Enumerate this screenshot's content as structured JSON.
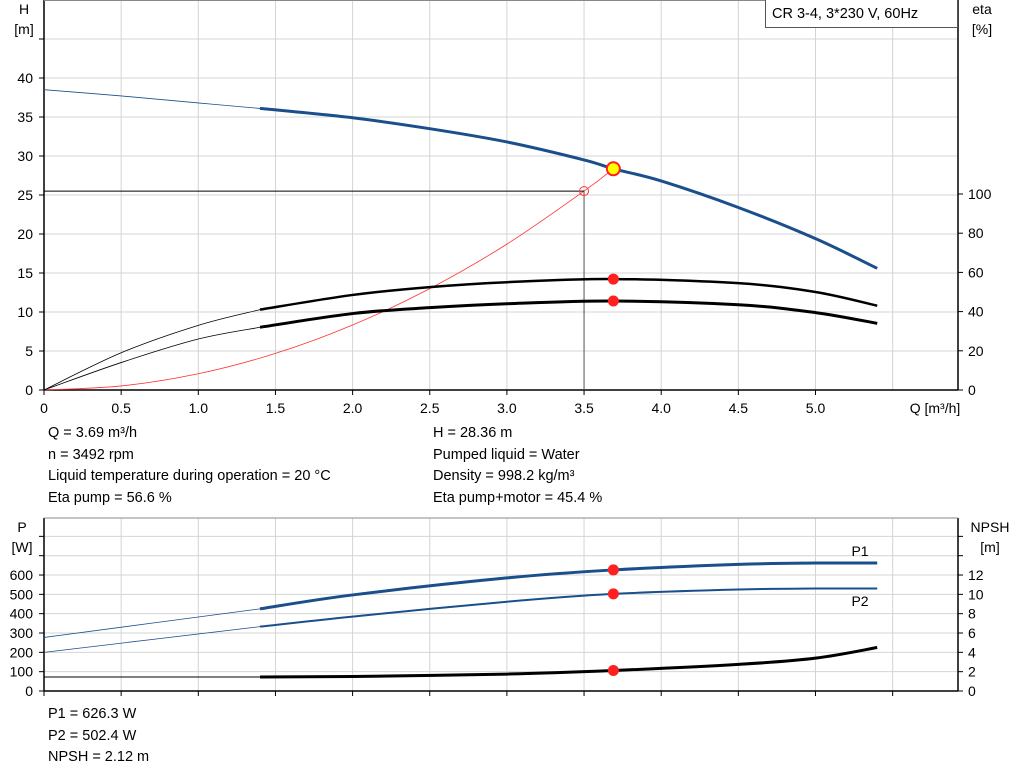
{
  "chart_data": [
    {
      "type": "line",
      "title": "CR 3-4, 3*230 V, 60Hz",
      "xlabel": "Q [m³/h]",
      "ylabel_left": "H\n[m]",
      "ylabel_left_lines": [
        "H",
        "[m]"
      ],
      "ylabel_right_lines": [
        "eta",
        "[%]"
      ],
      "xlim": [
        0,
        5.92
      ],
      "ylim_left": [
        0,
        50
      ],
      "ylim_right": [
        0,
        100
      ],
      "x_ticks": [
        "0",
        "0.5",
        "1.0",
        "1.5",
        "2.0",
        "2.5",
        "3.0",
        "3.5",
        "4.0",
        "4.5",
        "5.0"
      ],
      "y_ticks_left": [
        "0",
        "5",
        "10",
        "15",
        "20",
        "25",
        "30",
        "35",
        "40"
      ],
      "y_ticks_right": [
        "0",
        "20",
        "40",
        "60",
        "80",
        "100"
      ],
      "grid": true,
      "series": [
        {
          "id": "H",
          "axis": "left",
          "color": "#1a4f8b",
          "x": [
            0,
            0.5,
            1.0,
            1.4,
            2.0,
            2.5,
            3.0,
            3.5,
            3.69,
            4.0,
            4.5,
            5.0,
            5.4
          ],
          "y": [
            38.5,
            37.7,
            36.8,
            36.1,
            34.9,
            33.5,
            31.8,
            29.5,
            28.36,
            26.8,
            23.4,
            19.4,
            15.6
          ]
        },
        {
          "id": "eta_pump",
          "axis": "right",
          "color": "#000000",
          "x": [
            0,
            0.5,
            1.0,
            1.4,
            2.0,
            2.5,
            3.0,
            3.69,
            4.5,
            5.0,
            5.4
          ],
          "y": [
            0,
            19,
            33,
            41,
            48.5,
            52.5,
            55,
            56.6,
            54.5,
            50,
            43
          ]
        },
        {
          "id": "eta_pump_motor",
          "axis": "right",
          "color": "#000000",
          "x": [
            0,
            0.5,
            1.0,
            1.4,
            2.0,
            2.5,
            3.0,
            3.69,
            4.5,
            5.0,
            5.4
          ],
          "y": [
            0,
            14,
            26,
            32,
            39,
            42,
            44,
            45.4,
            43.5,
            39.5,
            34
          ]
        },
        {
          "id": "system_curve",
          "axis": "left",
          "color": "#ff3333",
          "x": [
            0,
            0.5,
            1.0,
            1.5,
            2.0,
            2.5,
            3.0,
            3.5,
            3.69
          ],
          "y": [
            0,
            0.52,
            2.08,
            4.69,
            8.33,
            13.0,
            18.7,
            25.5,
            28.36
          ]
        }
      ],
      "duty_point": {
        "Q": 3.69,
        "H": 28.36,
        "eta_pump": 56.6,
        "eta_pump_motor": 45.4
      },
      "reference_point": {
        "Q": 3.5,
        "H": 25.5
      }
    },
    {
      "type": "line",
      "ylabel_left_lines": [
        "P",
        "[W]"
      ],
      "ylabel_right_lines": [
        "NPSH",
        "[m]"
      ],
      "xlim": [
        0,
        5.92
      ],
      "ylim_left": [
        0,
        895
      ],
      "ylim_right": [
        0,
        17.9
      ],
      "y_ticks_left": [
        "0",
        "100",
        "200",
        "300",
        "400",
        "500",
        "600"
      ],
      "y_ticks_right": [
        "0",
        "2",
        "4",
        "6",
        "8",
        "10",
        "12"
      ],
      "grid": true,
      "series": [
        {
          "id": "P1",
          "name": "P1",
          "axis": "left",
          "color": "#1a4f8b",
          "x": [
            0,
            1.4,
            2.0,
            3.0,
            3.69,
            4.5,
            5.0,
            5.4
          ],
          "y": [
            277,
            425,
            497,
            585,
            626.3,
            655,
            662,
            662
          ]
        },
        {
          "id": "P2",
          "name": "P2",
          "axis": "left",
          "color": "#1a4f8b",
          "x": [
            0,
            1.4,
            2.0,
            3.0,
            3.69,
            4.5,
            5.0,
            5.4
          ],
          "y": [
            200,
            333,
            385,
            462,
            502.4,
            525,
            530,
            530
          ]
        },
        {
          "id": "NPSH",
          "axis": "right",
          "color": "#000000",
          "x": [
            0,
            1.4,
            2.0,
            3.0,
            3.69,
            4.5,
            5.0,
            5.4
          ],
          "y": [
            1.45,
            1.45,
            1.5,
            1.75,
            2.12,
            2.75,
            3.4,
            4.5
          ]
        }
      ]
    }
  ],
  "readout_top": {
    "q": "Q = 3.69 m³/h",
    "n": "n = 3492 rpm",
    "temp": "Liquid temperature during operation = 20 °C",
    "eta_pump": "Eta pump = 56.6 %",
    "h": "H = 28.36 m",
    "liquid": "Pumped liquid = Water",
    "density": "Density = 998.2 kg/m³",
    "eta_total": "Eta pump+motor = 45.4 %"
  },
  "readout_bottom": {
    "p1": "P1 = 626.3 W",
    "p2": "P2 = 502.4 W",
    "npsh": "NPSH = 2.12 m"
  },
  "colors": {
    "curve_blue": "#1a4f8b",
    "duty_marker": "#ff2020",
    "duty_point_fill": "#ffff00",
    "system_curve": "#ff3333",
    "grid": "#d4d4d4"
  }
}
